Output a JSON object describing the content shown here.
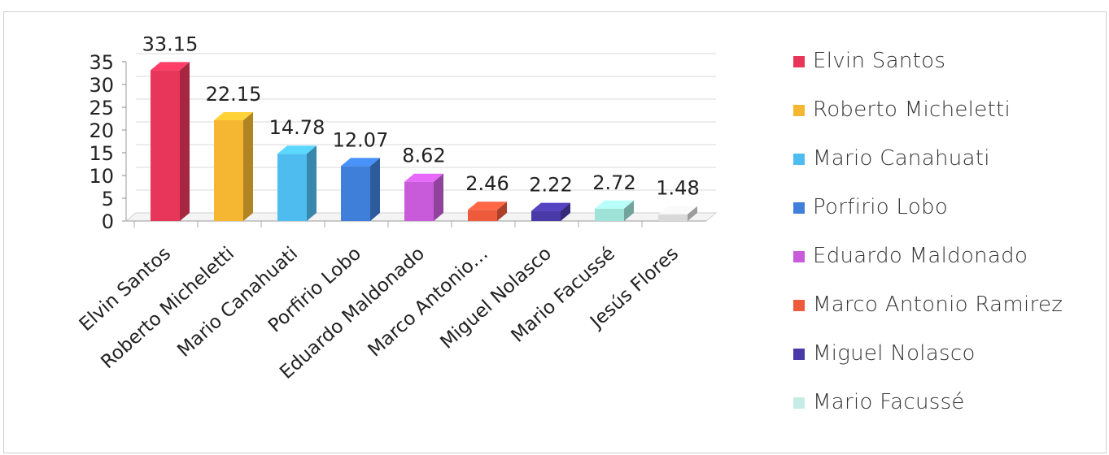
{
  "chart_data": {
    "type": "bar",
    "title": "",
    "xlabel": "",
    "ylabel": "",
    "ylim": [
      0,
      35
    ],
    "yticks": [
      0,
      5,
      10,
      15,
      20,
      25,
      30,
      35
    ],
    "grid": true,
    "legend_position": "right",
    "categories": [
      "Elvin Santos",
      "Roberto Micheletti",
      "Mario Canahuati",
      "Porfirio Lobo",
      "Eduardo Maldonado",
      "Marco Antonio…",
      "Miguel Nolasco",
      "Mario Facussé",
      "Jesús Flores"
    ],
    "values": [
      33.15,
      22.15,
      14.78,
      12.07,
      8.62,
      2.46,
      2.22,
      2.72,
      1.48
    ],
    "data_labels": [
      "33.15",
      "22.15",
      "14.78",
      "12.07",
      "8.62",
      "2.46",
      "2.22",
      "2.72",
      "1.48"
    ],
    "colors": [
      "#e8365a",
      "#f5b731",
      "#4fbcf0",
      "#3f7fd9",
      "#c85bd9",
      "#ee5a3c",
      "#4a3aa8",
      "#9fe3d8",
      "#d9d9d9"
    ],
    "legend": [
      {
        "label": "Elvin Santos",
        "color": "#e8365a"
      },
      {
        "label": "Roberto Micheletti",
        "color": "#f5b731"
      },
      {
        "label": "Mario Canahuati",
        "color": "#4fbcf0"
      },
      {
        "label": "Porfirio Lobo",
        "color": "#3f7fd9"
      },
      {
        "label": "Eduardo Maldonado",
        "color": "#c85bd9"
      },
      {
        "label": "Marco Antonio Ramirez",
        "color": "#ee5a3c"
      },
      {
        "label": "Miguel Nolasco",
        "color": "#4a3aa8"
      },
      {
        "label": "Mario Facussé",
        "color": "#c6ece6"
      }
    ]
  }
}
